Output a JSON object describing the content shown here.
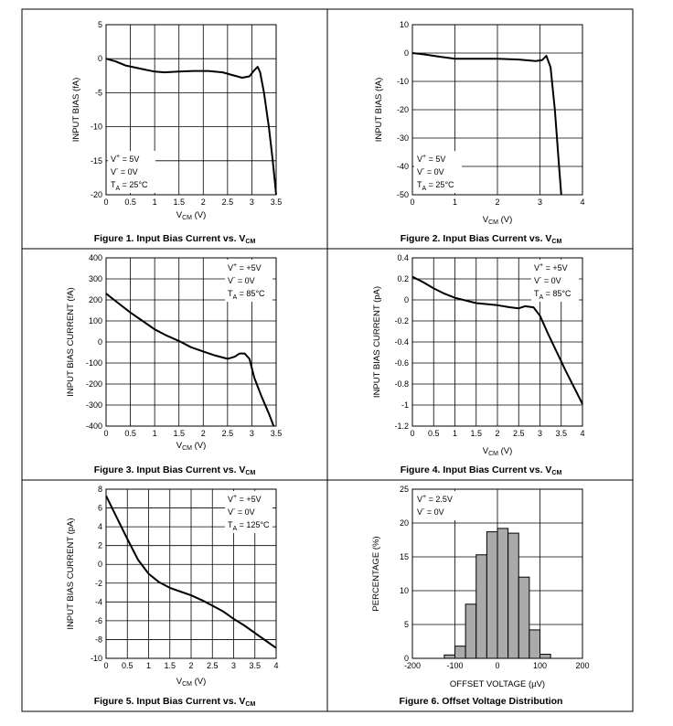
{
  "charts": [
    {
      "id": "fig1",
      "chart_data": {
        "type": "line",
        "caption": "Figure 1. Input Bias Current vs. V",
        "caption_sub": "CM",
        "xlabel": "V",
        "xlabel_sub": "CM",
        "xlabel_unit": " (V)",
        "ylabel": "INPUT BIAS (fA)",
        "xlim": [
          0,
          3.5
        ],
        "ylim": [
          -20,
          5
        ],
        "x_ticks": [
          0,
          0.5,
          1,
          1.5,
          2,
          2.5,
          3,
          3.5
        ],
        "x_tick_labels": [
          "0",
          "0.5",
          "1",
          "1.5",
          "2",
          "2.5",
          "3",
          "3.5"
        ],
        "y_ticks": [
          -20,
          -15,
          -10,
          -5,
          0,
          5
        ],
        "y_tick_labels": [
          "-20",
          "-15",
          "-10",
          "-5",
          "0",
          "5"
        ],
        "grid": true,
        "legend_position": "bottom-left",
        "legend": [
          {
            "main": "V",
            "sup": "+",
            "sub": "",
            "rest": " = 5V"
          },
          {
            "main": "V",
            "sup": "-",
            "sub": "",
            "rest": " = 0V"
          },
          {
            "main": "T",
            "sup": "",
            "sub": "A",
            "rest": " = 25°C"
          }
        ],
        "series": [
          {
            "x": [
              0,
              0.2,
              0.4,
              0.6,
              0.8,
              1.0,
              1.2,
              1.5,
              1.8,
              2.1,
              2.4,
              2.6,
              2.8,
              2.95,
              3.05,
              3.12,
              3.17,
              3.25,
              3.35,
              3.43,
              3.5
            ],
            "y": [
              0,
              -0.4,
              -1.0,
              -1.3,
              -1.6,
              -1.9,
              -2.0,
              -1.9,
              -1.8,
              -1.8,
              -2.0,
              -2.4,
              -2.8,
              -2.6,
              -1.7,
              -1.2,
              -2.0,
              -5.0,
              -10.0,
              -15.0,
              -20.0
            ]
          }
        ]
      }
    },
    {
      "id": "fig2",
      "chart_data": {
        "type": "line",
        "caption": "Figure 2. Input Bias Current vs. V",
        "caption_sub": "CM",
        "xlabel": "V",
        "xlabel_sub": "CM",
        "xlabel_unit": " (V)",
        "ylabel": "INPUT BIAS (fA)",
        "xlim": [
          0,
          4
        ],
        "ylim": [
          -50,
          10
        ],
        "x_ticks": [
          0,
          1,
          2,
          3,
          4
        ],
        "x_tick_labels": [
          "0",
          "1",
          "2",
          "3",
          "4"
        ],
        "y_ticks": [
          -50,
          -40,
          -30,
          -20,
          -10,
          0,
          10
        ],
        "y_tick_labels": [
          "-50",
          "-40",
          "-30",
          "-20",
          "-10",
          "0",
          "10"
        ],
        "grid": true,
        "legend_position": "bottom-left",
        "legend": [
          {
            "main": "V",
            "sup": "+",
            "sub": "",
            "rest": " = 5V"
          },
          {
            "main": "V",
            "sup": "-",
            "sub": "",
            "rest": " = 0V"
          },
          {
            "main": "T",
            "sup": "",
            "sub": "A",
            "rest": " = 25°C"
          }
        ],
        "series": [
          {
            "x": [
              0,
              0.3,
              0.6,
              1.0,
              1.5,
              2.0,
              2.5,
              2.9,
              3.05,
              3.15,
              3.25,
              3.35,
              3.45,
              3.5
            ],
            "y": [
              0,
              -0.5,
              -1.2,
              -2.0,
              -2.0,
              -2.0,
              -2.3,
              -2.8,
              -2.5,
              -1.0,
              -5.0,
              -20.0,
              -40.0,
              -50.0
            ]
          }
        ]
      }
    },
    {
      "id": "fig3",
      "chart_data": {
        "type": "line",
        "caption": "Figure 3. Input Bias Current vs. V",
        "caption_sub": "CM",
        "xlabel": "V",
        "xlabel_sub": "CM",
        "xlabel_unit": " (V)",
        "ylabel": "INPUT BIAS CURRENT (fA)",
        "xlim": [
          0,
          3.5
        ],
        "ylim": [
          -400,
          400
        ],
        "x_ticks": [
          0,
          0.5,
          1,
          1.5,
          2,
          2.5,
          3,
          3.5
        ],
        "x_tick_labels": [
          "0",
          "0.5",
          "1",
          "1.5",
          "2",
          "2.5",
          "3",
          "3.5"
        ],
        "y_ticks": [
          -400,
          -300,
          -200,
          -100,
          0,
          100,
          200,
          300,
          400
        ],
        "y_tick_labels": [
          "-400",
          "-300",
          "-200",
          "-100",
          "0",
          "100",
          "200",
          "300",
          "400"
        ],
        "grid": true,
        "legend_position": "top-right",
        "legend": [
          {
            "main": "V",
            "sup": "+",
            "sub": "",
            "rest": " = +5V"
          },
          {
            "main": "V",
            "sup": "-",
            "sub": "",
            "rest": " = 0V"
          },
          {
            "main": "T",
            "sup": "",
            "sub": "A",
            "rest": " = 85°C"
          }
        ],
        "series": [
          {
            "x": [
              0,
              0.25,
              0.5,
              0.75,
              1.0,
              1.25,
              1.5,
              1.75,
              2.0,
              2.25,
              2.5,
              2.65,
              2.75,
              2.85,
              2.95,
              3.05,
              3.2,
              3.35,
              3.45
            ],
            "y": [
              230,
              185,
              140,
              100,
              60,
              30,
              5,
              -25,
              -45,
              -65,
              -80,
              -70,
              -55,
              -55,
              -80,
              -170,
              -260,
              -340,
              -400
            ]
          }
        ]
      }
    },
    {
      "id": "fig4",
      "chart_data": {
        "type": "line",
        "caption": "Figure 4. Input Bias Current vs. V",
        "caption_sub": "CM",
        "xlabel": "V",
        "xlabel_sub": "CM",
        "xlabel_unit": " (V)",
        "ylabel": "INPUT BIAS CURRENT (pA)",
        "xlim": [
          0,
          4
        ],
        "ylim": [
          -1.2,
          0.4
        ],
        "x_ticks": [
          0,
          0.5,
          1,
          1.5,
          2,
          2.5,
          3,
          3.5,
          4
        ],
        "x_tick_labels": [
          "0",
          "0.5",
          "1",
          "1.5",
          "2",
          "2.5",
          "3",
          "3.5",
          "4"
        ],
        "y_ticks": [
          -1.2,
          -1,
          -0.8,
          -0.6,
          -0.4,
          -0.2,
          0,
          0.2,
          0.4
        ],
        "y_tick_labels": [
          "-1.2",
          "-1",
          "-0.8",
          "-0.6",
          "-0.4",
          "-0.2",
          "0",
          "0.2",
          "0.4"
        ],
        "grid": true,
        "legend_position": "top-right",
        "legend": [
          {
            "main": "V",
            "sup": "+",
            "sub": "",
            "rest": " = +5V"
          },
          {
            "main": "V",
            "sup": "-",
            "sub": "",
            "rest": " = 0V"
          },
          {
            "main": "T",
            "sup": "",
            "sub": "A",
            "rest": " = 85°C"
          }
        ],
        "series": [
          {
            "x": [
              0,
              0.25,
              0.5,
              0.75,
              1.0,
              1.5,
              2.0,
              2.3,
              2.5,
              2.65,
              2.85,
              3.0,
              3.2,
              3.4,
              3.6,
              3.8,
              4.0
            ],
            "y": [
              0.22,
              0.17,
              0.11,
              0.06,
              0.02,
              -0.03,
              -0.05,
              -0.07,
              -0.08,
              -0.06,
              -0.07,
              -0.15,
              -0.33,
              -0.5,
              -0.67,
              -0.83,
              -0.99
            ]
          }
        ]
      }
    },
    {
      "id": "fig5",
      "chart_data": {
        "type": "line",
        "caption": "Figure 5. Input Bias Current vs. V",
        "caption_sub": "CM",
        "xlabel": "V",
        "xlabel_sub": "CM",
        "xlabel_unit": " (V)",
        "ylabel": "INPUT BIAS CURRENT (pA)",
        "xlim": [
          0,
          4
        ],
        "ylim": [
          -10,
          8
        ],
        "x_ticks": [
          0,
          0.5,
          1,
          1.5,
          2,
          2.5,
          3,
          3.5,
          4
        ],
        "x_tick_labels": [
          "0",
          "0.5",
          "1",
          "1.5",
          "2",
          "2.5",
          "3",
          "3.5",
          "4"
        ],
        "y_ticks": [
          -10,
          -8,
          -6,
          -4,
          -2,
          0,
          2,
          4,
          6,
          8
        ],
        "y_tick_labels": [
          "-10",
          "-8",
          "-6",
          "-4",
          "-2",
          "0",
          "2",
          "4",
          "6",
          "8"
        ],
        "grid": true,
        "legend_position": "top-right",
        "legend": [
          {
            "main": "V",
            "sup": "+",
            "sub": "",
            "rest": " = +5V"
          },
          {
            "main": "V",
            "sup": "-",
            "sub": "",
            "rest": " = 0V"
          },
          {
            "main": "T",
            "sup": "",
            "sub": "A",
            "rest": " = 125°C"
          }
        ],
        "series": [
          {
            "x": [
              0,
              0.25,
              0.5,
              0.75,
              1.0,
              1.25,
              1.5,
              1.75,
              2.0,
              2.25,
              2.5,
              2.75,
              3.0,
              3.25,
              3.5,
              3.75,
              4.0
            ],
            "y": [
              7.3,
              5.0,
              2.7,
              0.5,
              -1.0,
              -1.9,
              -2.5,
              -2.9,
              -3.3,
              -3.8,
              -4.4,
              -5.0,
              -5.8,
              -6.5,
              -7.3,
              -8.1,
              -8.9
            ]
          }
        ]
      }
    },
    {
      "id": "fig6",
      "chart_data": {
        "type": "bar",
        "caption": "Figure 6. Offset Voltage Distribution",
        "caption_sub": "",
        "xlabel": "OFFSET VOLTAGE (µV)",
        "xlabel_sub": "",
        "xlabel_unit": "",
        "ylabel": "PERCENTAGE (%)",
        "xlim": [
          -200,
          200
        ],
        "ylim": [
          0,
          25
        ],
        "x_ticks": [
          -200,
          -100,
          0,
          100,
          200
        ],
        "x_tick_labels": [
          "-200",
          "-100",
          "0",
          "100",
          "200"
        ],
        "y_ticks": [
          0,
          5,
          10,
          15,
          20,
          25
        ],
        "y_tick_labels": [
          "0",
          "5",
          "10",
          "15",
          "20",
          "25"
        ],
        "grid": true,
        "legend_position": "top-left",
        "legend": [
          {
            "main": "V",
            "sup": "+",
            "sub": "",
            "rest": " = 2.5V"
          },
          {
            "main": "V",
            "sup": "-",
            "sub": "",
            "rest": " = 0V"
          }
        ],
        "bin_width": 25,
        "bin_starts": [
          -125,
          -100,
          -75,
          -50,
          -25,
          0,
          25,
          50,
          75,
          100
        ],
        "values": [
          0.5,
          1.8,
          8.0,
          15.3,
          18.7,
          19.2,
          18.5,
          12.0,
          4.2,
          0.6
        ],
        "bar_color": "#aaaaaa"
      }
    }
  ]
}
